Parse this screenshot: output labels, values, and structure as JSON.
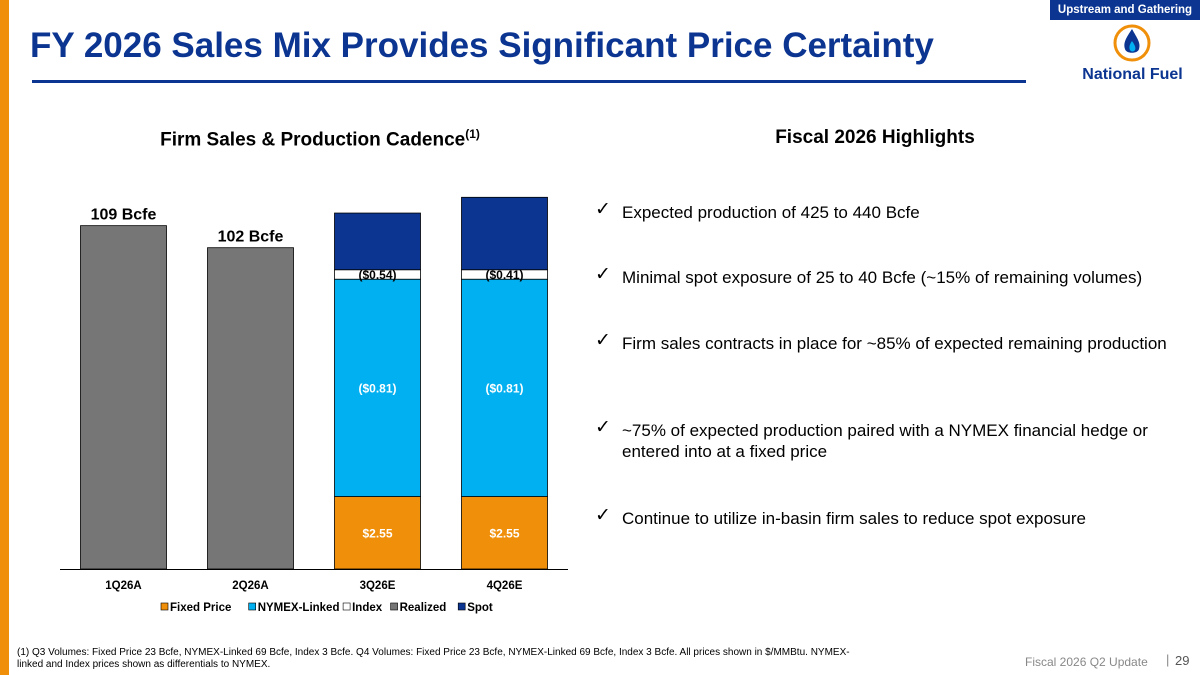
{
  "header": {
    "section_tag": "Upstream and Gathering",
    "title": "FY 2026 Sales Mix Provides Significant Price Certainty",
    "logo_text": "National Fuel"
  },
  "chart_title": "Firm Sales & Production Cadence",
  "chart_title_sup": "(1)",
  "chart_data": {
    "type": "bar",
    "stacked": true,
    "categories": [
      "1Q26A",
      "2Q26A",
      "3Q26E",
      "4Q26E"
    ],
    "series": [
      {
        "name": "Fixed Price",
        "color": "#f0900a",
        "values": [
          0,
          0,
          23,
          23
        ],
        "labels": [
          "",
          "",
          "$2.55",
          "$2.55"
        ],
        "label_color": "#ffffff"
      },
      {
        "name": "NYMEX-Linked",
        "color": "#00b0f0",
        "values": [
          0,
          0,
          69,
          69
        ],
        "labels": [
          "",
          "",
          "($0.81)",
          "($0.81)"
        ],
        "label_color": "#ffffff"
      },
      {
        "name": "Index",
        "color": "#ffffff",
        "values": [
          0,
          0,
          3,
          3
        ],
        "labels": [
          "",
          "",
          "($0.54)",
          "($0.41)"
        ],
        "label_color": "#000000"
      },
      {
        "name": "Realized",
        "color": "#767676",
        "values": [
          109,
          102,
          0,
          0
        ],
        "labels": [
          "",
          "",
          "",
          ""
        ],
        "label_color": "#000000"
      },
      {
        "name": "Spot",
        "color": "#0b3591",
        "values": [
          0,
          0,
          18,
          23
        ],
        "labels": [
          "",
          "",
          "",
          ""
        ],
        "label_color": "#ffffff"
      }
    ],
    "total_labels": [
      "109 Bcfe",
      "102 Bcfe",
      "",
      ""
    ],
    "legend_position": "bottom",
    "ylim": [
      0,
      120
    ],
    "grid": false
  },
  "highlights": {
    "title": "Fiscal 2026 Highlights",
    "check_glyph": "✓",
    "items": [
      "Expected production of 425 to 440 Bcfe",
      "Minimal spot exposure of 25 to 40 Bcfe (~15% of remaining volumes)",
      "Firm sales contracts in place for ~85% of expected remaining production",
      "~75% of expected production paired with a NYMEX financial hedge or entered into at a fixed price",
      "Continue to utilize in-basin firm sales to reduce spot exposure"
    ]
  },
  "footnote": "(1) Q3 Volumes: Fixed Price 23 Bcfe, NYMEX-Linked 69 Bcfe, Index 3 Bcfe. Q4 Volumes: Fixed Price 23 Bcfe, NYMEX-Linked 69 Bcfe, Index 3 Bcfe. All prices shown in $/MMBtu. NYMEX-linked and Index prices shown as differentials to NYMEX.",
  "footer": {
    "label": "Fiscal 2026 Q2 Update",
    "separator": "|",
    "page_number": "29"
  },
  "colors": {
    "brand_blue": "#0b3591",
    "accent_orange": "#f0900a"
  }
}
